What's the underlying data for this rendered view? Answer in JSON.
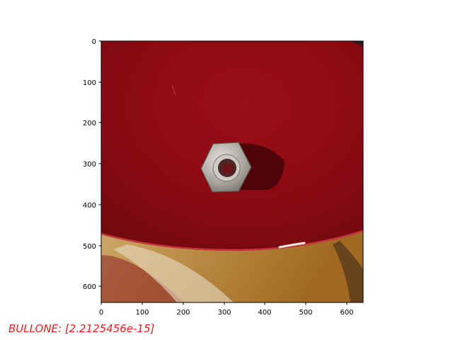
{
  "image": {
    "description": "",
    "x_range": [
      0,
      640
    ],
    "y_range": [
      0,
      640
    ],
    "x_ticks": [
      0,
      100,
      200,
      300,
      400,
      500,
      600
    ],
    "y_ticks": [
      0,
      100,
      200,
      300,
      400,
      500,
      600
    ]
  },
  "caption": {
    "text": "BULLONE: [2.2125456e-15]",
    "color": "#e8201c"
  }
}
